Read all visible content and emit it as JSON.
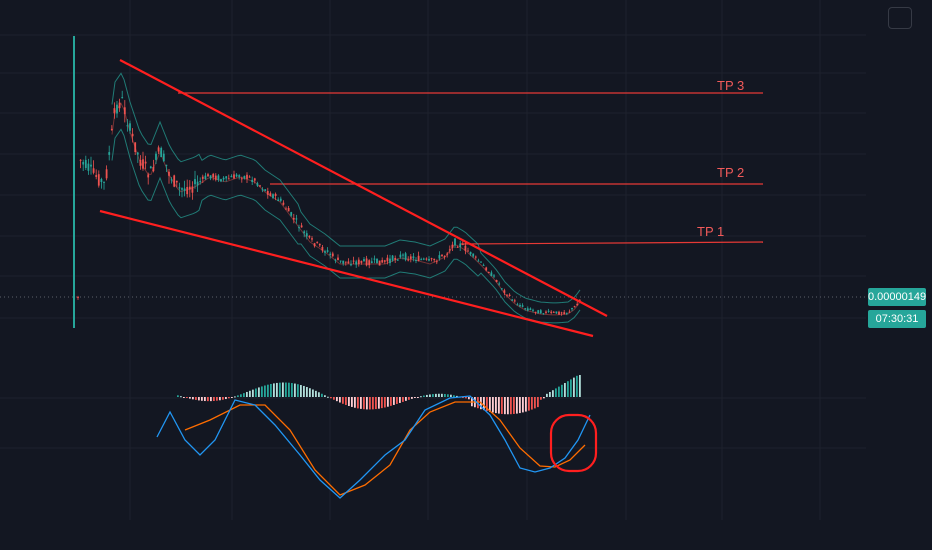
{
  "price_badge": "0.00000149",
  "timer_badge": "07:30:31",
  "colors": {
    "background": "#131722",
    "grid": "#1e222d",
    "candle_up": "#26a69a",
    "candle_down": "#ef5350",
    "wick_base": "#b2b5be",
    "band": "#26a69a",
    "trendline": "#ff1f1f",
    "tp_line": "#e53935",
    "tp_text": "#f15a5a",
    "hist_up": "#26a69a",
    "hist_up_light": "#b2dfdb",
    "hist_down": "#ef5350",
    "hist_down_light": "#ffcdd2",
    "macd": "#2196f3",
    "signal": "#ff6d00",
    "circle": "#ff1f1f"
  },
  "chart_data": {
    "type": "candlestick",
    "targets": [
      {
        "label": "TP 3"
      },
      {
        "label": "TP 2"
      },
      {
        "label": "TP 1"
      }
    ],
    "price_level": "0.00000149",
    "countdown": "07:30:31",
    "indicators": [
      "bollinger_bands",
      "macd"
    ]
  }
}
